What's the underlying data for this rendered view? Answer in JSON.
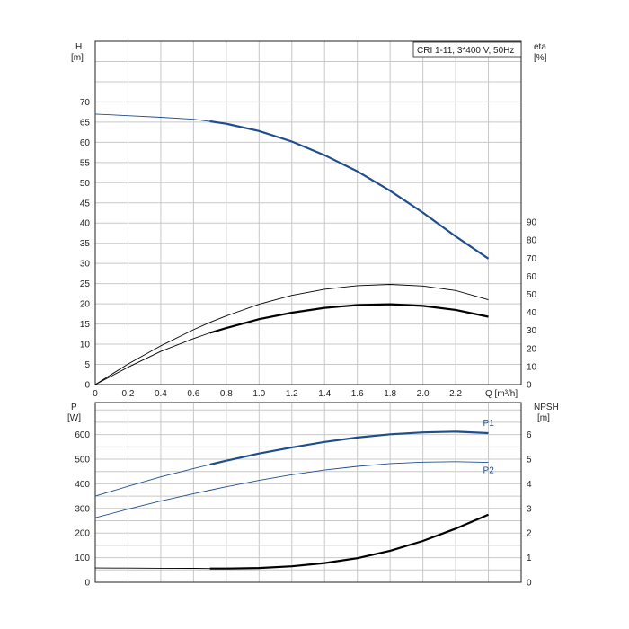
{
  "chart_data": [
    {
      "type": "line",
      "legend": "CRI 1-11, 3*400 V, 50Hz",
      "xlabel": "Q [m³/h]",
      "xlim": [
        0,
        2.6
      ],
      "x_ticks": [
        "0",
        "0.2",
        "0.4",
        "0.6",
        "0.8",
        "1.0",
        "1.2",
        "1.4",
        "1.6",
        "1.8",
        "2.0",
        "2.2"
      ],
      "left_axis": {
        "label_line1": "H",
        "label_line2": "[m]",
        "ylim": [
          0,
          85
        ],
        "ticks": [
          "0",
          "5",
          "10",
          "15",
          "20",
          "25",
          "30",
          "35",
          "40",
          "45",
          "50",
          "55",
          "60",
          "65",
          "70"
        ]
      },
      "right_axis": {
        "label_line1": "eta",
        "label_line2": "[%]",
        "ylim": [
          0,
          190
        ],
        "ticks": [
          "0",
          "10",
          "20",
          "30",
          "40",
          "50",
          "60",
          "70",
          "80",
          "90"
        ]
      },
      "colors": {
        "head": "#1f4e8c",
        "efficiency": "#000000"
      },
      "series": [
        {
          "axis": "left",
          "color": "#1f4e8c",
          "x": [
            0,
            0.2,
            0.4,
            0.6,
            0.7,
            0.8,
            1.0,
            1.2,
            1.4,
            1.6,
            1.8,
            2.0,
            2.2,
            2.4
          ],
          "y": [
            67,
            66.6,
            66.2,
            65.7,
            65.2,
            64.6,
            62.8,
            60.2,
            56.8,
            52.8,
            48.0,
            42.6,
            36.7,
            31.2
          ],
          "bold_from": 0.7
        },
        {
          "axis": "left",
          "color": "#000000",
          "x": [
            0,
            0.2,
            0.4,
            0.6,
            0.7,
            0.8,
            1.0,
            1.2,
            1.4,
            1.6,
            1.8,
            2.0,
            2.2,
            2.4
          ],
          "y": [
            0,
            4.3,
            8.2,
            11.4,
            12.8,
            14.0,
            16.2,
            17.8,
            19.0,
            19.7,
            19.9,
            19.5,
            18.5,
            16.8
          ],
          "bold_from": 0.7
        },
        {
          "axis": "left",
          "color": "#000000",
          "x": [
            0,
            0.2,
            0.4,
            0.6,
            0.7,
            0.8,
            1.0,
            1.2,
            1.4,
            1.6,
            1.8,
            2.0,
            2.2,
            2.4
          ],
          "y": [
            0,
            5.1,
            9.6,
            13.6,
            15.4,
            17.0,
            19.9,
            22.1,
            23.6,
            24.5,
            24.8,
            24.4,
            23.3,
            21.0
          ],
          "bold_from": 99
        }
      ]
    },
    {
      "type": "line",
      "xlim": [
        0,
        2.6
      ],
      "left_axis": {
        "label_line1": "P",
        "label_line2": "[W]",
        "ylim": [
          0,
          730
        ],
        "ticks": [
          "0",
          "100",
          "200",
          "300",
          "400",
          "500",
          "600"
        ]
      },
      "right_axis": {
        "label_line1": "NPSH",
        "label_line2": "[m]",
        "ylim": [
          0,
          7.3
        ],
        "ticks": [
          "0",
          "1",
          "2",
          "3",
          "4",
          "5",
          "6"
        ]
      },
      "colors": {
        "power": "#1f4e8c",
        "npsh": "#000000"
      },
      "series": [
        {
          "name": "P1",
          "axis": "left",
          "color": "#1f4e8c",
          "x": [
            0,
            0.2,
            0.4,
            0.6,
            0.7,
            0.8,
            1.0,
            1.2,
            1.4,
            1.6,
            1.8,
            2.0,
            2.2,
            2.4
          ],
          "y": [
            350,
            390,
            428,
            462,
            478,
            494,
            523,
            548,
            570,
            588,
            601,
            609,
            612,
            606
          ],
          "bold_from": 0.7
        },
        {
          "name": "P2",
          "axis": "left",
          "color": "#1f4e8c",
          "x": [
            0,
            0.2,
            0.4,
            0.6,
            0.7,
            0.8,
            1.0,
            1.2,
            1.4,
            1.6,
            1.8,
            2.0,
            2.2,
            2.4
          ],
          "y": [
            262,
            297,
            330,
            360,
            374,
            388,
            414,
            437,
            456,
            471,
            482,
            488,
            490,
            487
          ],
          "bold_from": 99
        },
        {
          "axis": "right",
          "color": "#000000",
          "x": [
            0,
            0.2,
            0.4,
            0.6,
            0.7,
            0.8,
            1.0,
            1.2,
            1.4,
            1.6,
            1.8,
            2.0,
            2.2,
            2.4
          ],
          "y": [
            0.58,
            0.575,
            0.57,
            0.565,
            0.56,
            0.56,
            0.58,
            0.65,
            0.78,
            0.98,
            1.28,
            1.68,
            2.18,
            2.75
          ],
          "bold_from": 0.7
        }
      ]
    }
  ]
}
